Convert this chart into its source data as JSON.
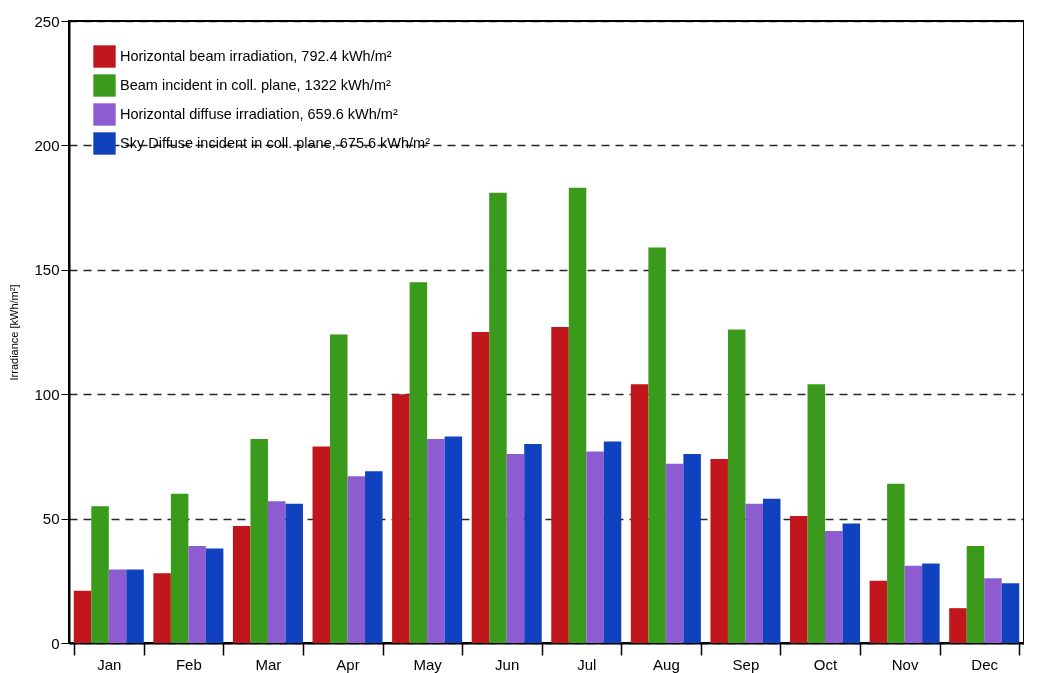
{
  "chart_data": {
    "type": "bar",
    "ylabel": "Irradiance  [kWh/m²]",
    "categories": [
      "Jan",
      "Feb",
      "Mar",
      "Apr",
      "May",
      "Jun",
      "Jul",
      "Aug",
      "Sep",
      "Oct",
      "Nov",
      "Dec"
    ],
    "series": [
      {
        "name": "Horizontal beam irradiation,  792.4 kWh/m²",
        "color": "#c0161c",
        "values": [
          21,
          28,
          47,
          79,
          100,
          125,
          127,
          104,
          74,
          51,
          25,
          14
        ]
      },
      {
        "name": "Beam incident in coll. plane,  1322 kWh/m²",
        "color": "#3a9a1c",
        "values": [
          55,
          60,
          82,
          124,
          145,
          181,
          183,
          159,
          126,
          104,
          64,
          39
        ]
      },
      {
        "name": "Horizontal diffuse irradiation,  659.6 kWh/m²",
        "color": "#8c5cd0",
        "values": [
          29.5,
          39,
          57,
          67,
          82,
          76,
          77,
          72,
          56,
          45,
          31,
          26
        ]
      },
      {
        "name": "Sky Diffuse incident in coll. plane,  675.6 kWh/m²",
        "color": "#1042c0",
        "values": [
          29.5,
          38,
          56,
          69,
          83,
          80,
          81,
          76,
          58,
          48,
          32,
          24
        ]
      }
    ],
    "ylim": [
      0,
      250
    ],
    "yticks": [
      0,
      50,
      100,
      150,
      200,
      250
    ],
    "grid": "y",
    "legend": "top left"
  }
}
